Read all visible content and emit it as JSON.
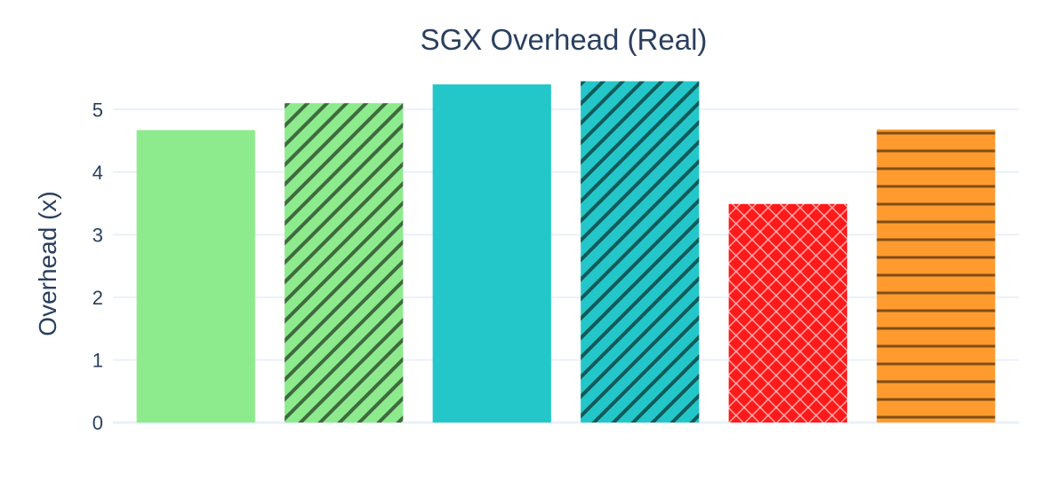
{
  "chart_data": {
    "type": "bar",
    "title": "SGX Overhead (Real)",
    "xlabel": "",
    "ylabel": "Overhead (x)",
    "ylim": [
      0,
      5.5
    ],
    "yticks": [
      0,
      1,
      2,
      3,
      4,
      5
    ],
    "grid": true,
    "legend": "none",
    "values": [
      4.67,
      5.1,
      5.4,
      5.45,
      3.49,
      4.68
    ],
    "bars": [
      {
        "color": "#8deb8d",
        "pattern": "none"
      },
      {
        "color": "#8deb8d",
        "pattern": "diagonal-stripes"
      },
      {
        "color": "#24c7c9",
        "pattern": "none"
      },
      {
        "color": "#24c7c9",
        "pattern": "diagonal-stripes"
      },
      {
        "color": "#ff1a1a",
        "pattern": "crosshatch"
      },
      {
        "color": "#ff9b2e",
        "pattern": "horizontal-stripes"
      }
    ]
  }
}
